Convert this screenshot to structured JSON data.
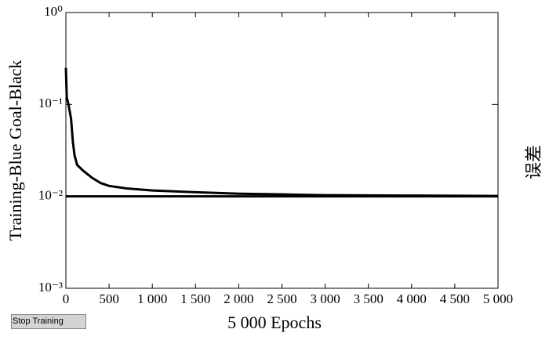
{
  "chart_data": {
    "type": "line",
    "y_label": "Training-Blue Goal-Black",
    "x_label": "5 000 Epochs",
    "right_label": "误差",
    "xlim": [
      0,
      5000
    ],
    "xticks": [
      0,
      500,
      {
        "value": 1000,
        "label": "1 000"
      },
      {
        "value": 1500,
        "label": "1 500"
      },
      {
        "value": 2000,
        "label": "2 000"
      },
      {
        "value": 2500,
        "label": "2 500"
      },
      {
        "value": 3000,
        "label": "3 000"
      },
      {
        "value": 3500,
        "label": "3 500"
      },
      {
        "value": 4000,
        "label": "4 000"
      },
      {
        "value": 4500,
        "label": "4 500"
      },
      {
        "value": 5000,
        "label": "5 000"
      }
    ],
    "ylim": [
      0.001,
      1
    ],
    "yticks": [
      {
        "value": 1,
        "label": "10⁰"
      },
      {
        "value": 0.1,
        "label": "10⁻¹"
      },
      {
        "value": 0.01,
        "label": "10⁻²"
      },
      {
        "value": 0.001,
        "label": "10⁻³"
      }
    ],
    "log_y": true,
    "series": [
      {
        "color": "#000000",
        "x": [
          0,
          10,
          30,
          60,
          80,
          100,
          130,
          200,
          300,
          400,
          500,
          700,
          1000,
          1500,
          2000,
          2500,
          3000,
          4000,
          5000
        ],
        "values": [
          0.25,
          0.12,
          0.1,
          0.07,
          0.04,
          0.028,
          0.022,
          0.019,
          0.016,
          0.014,
          0.013,
          0.0122,
          0.0116,
          0.0111,
          0.0107,
          0.0105,
          0.0103,
          0.0102,
          0.0101
        ]
      },
      {
        "color": "#000000",
        "x": [
          0,
          5000
        ],
        "values": [
          0.01,
          0.01
        ]
      }
    ],
    "button": "Stop Training"
  }
}
